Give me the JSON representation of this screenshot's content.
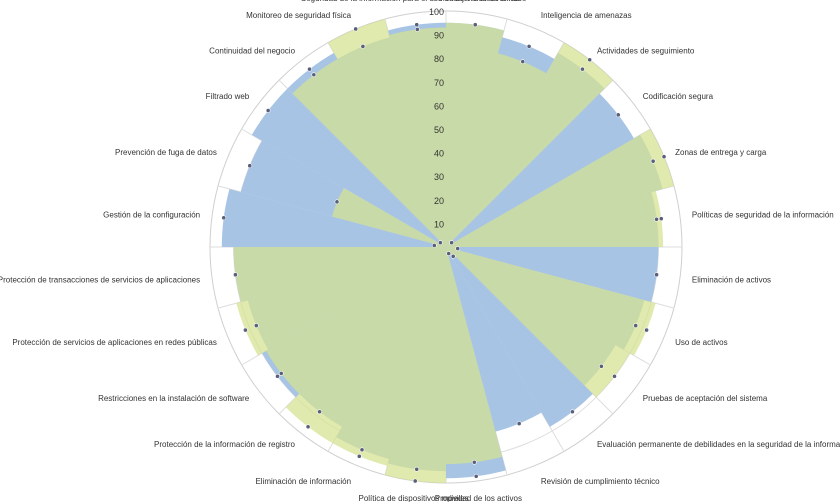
{
  "chart_data": {
    "type": "radar",
    "title": "",
    "rmin": 0,
    "rmax": 100,
    "ticks": [
      10,
      20,
      30,
      40,
      50,
      60,
      70,
      80,
      90,
      100
    ],
    "grid": true,
    "categories": [
      "Mensajería electrónica",
      "Inteligencia de amenazas",
      "Actividades de seguimiento",
      "Codificación segura",
      "Zonas de entrega y carga",
      "Políticas de seguridad de la información",
      "Eliminación de activos",
      "Uso de activos",
      "Pruebas de aceptación del sistema",
      "Evaluación permanente de debilidades en la seguridad de la información",
      "Revisión de cumplimiento técnico",
      "Propiedad de los activos",
      "Política de dispositivos móviles",
      "Eliminación de información",
      "Protección de la información de registro",
      "Restricciones en la instalación de software",
      "Protección de servicios de aplicaciones en redes públicas",
      "Protección de transacciones de servicios de aplicaciones",
      "Gestión de la configuración",
      "Prevención de fuga de datos",
      "Filtrado web",
      "Continuidad del negocio",
      "Monitoreo de seguridad física",
      "Seguridad de la información para el uso de servicios en la nube"
    ],
    "series": [
      {
        "color": "#a7c4e5",
        "values": [
          95,
          92,
          95,
          92,
          95,
          90,
          90,
          87,
          83,
          88,
          81,
          98,
          95,
          93,
          88,
          90,
          87,
          90,
          95,
          90,
          95,
          95,
          92,
          95
        ]
      },
      {
        "color": "#d5e28f",
        "values": [
          95,
          85,
          100,
          3,
          100,
          92,
          5,
          92,
          90,
          5,
          3,
          92,
          100,
          96,
          96,
          88,
          92,
          90,
          5,
          50,
          3,
          92,
          100,
          93
        ]
      }
    ]
  }
}
